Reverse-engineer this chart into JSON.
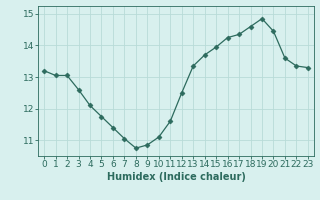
{
  "x": [
    0,
    1,
    2,
    3,
    4,
    5,
    6,
    7,
    8,
    9,
    10,
    11,
    12,
    13,
    14,
    15,
    16,
    17,
    18,
    19,
    20,
    21,
    22,
    23
  ],
  "y": [
    13.2,
    13.05,
    13.05,
    12.6,
    12.1,
    11.75,
    11.4,
    11.05,
    10.75,
    10.85,
    11.1,
    11.6,
    12.5,
    13.35,
    13.7,
    13.95,
    14.25,
    14.35,
    14.6,
    14.85,
    14.45,
    13.6,
    13.35,
    13.3
  ],
  "line_color": "#2d6b5e",
  "marker": "D",
  "marker_size": 2.5,
  "background_color": "#d8f0ee",
  "grid_color": "#b8dbd8",
  "xlabel": "Humidex (Indice chaleur)",
  "xlabel_fontsize": 7,
  "tick_color": "#2d6b5e",
  "tick_fontsize": 6.5,
  "ylim": [
    10.5,
    15.25
  ],
  "xlim": [
    -0.5,
    23.5
  ],
  "yticks": [
    11,
    12,
    13,
    14,
    15
  ],
  "xticks": [
    0,
    1,
    2,
    3,
    4,
    5,
    6,
    7,
    8,
    9,
    10,
    11,
    12,
    13,
    14,
    15,
    16,
    17,
    18,
    19,
    20,
    21,
    22,
    23
  ]
}
